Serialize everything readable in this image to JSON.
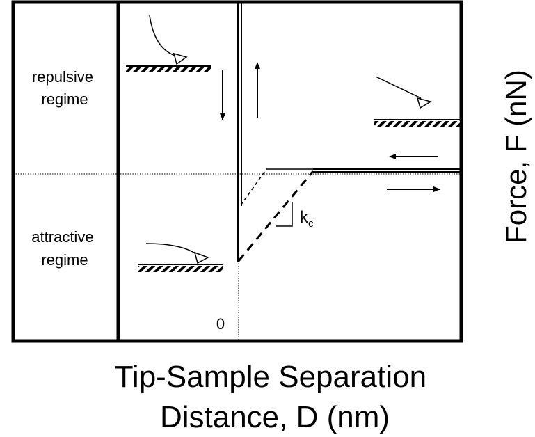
{
  "labels": {
    "repulsive_regime": [
      "repulsive",
      "regime"
    ],
    "attractive_regime": [
      "attractive",
      "regime"
    ],
    "origin": "0",
    "stiffness": {
      "main": "k",
      "sub": "c"
    },
    "y_axis": "Force, F (nN)",
    "x_axis": [
      "Tip-Sample Separation",
      "Distance, D (nm)"
    ]
  }
}
